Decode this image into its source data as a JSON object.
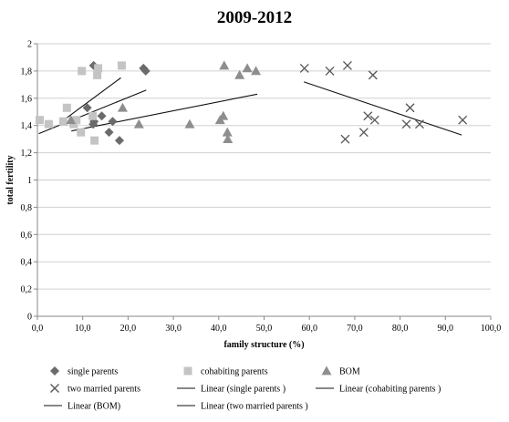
{
  "chart_data": {
    "type": "scatter",
    "title": "2009-2012",
    "xlabel": "family structure (%)",
    "ylabel": "total fertility",
    "xlim": [
      0,
      100
    ],
    "ylim": [
      0,
      2
    ],
    "x_ticks": [
      "0,0",
      "10,0",
      "20,0",
      "30,0",
      "40,0",
      "50,0",
      "60,0",
      "70,0",
      "80,0",
      "90,0",
      "100,0"
    ],
    "y_ticks": [
      "0",
      "0,2",
      "0,4",
      "0,6",
      "0,8",
      "1",
      "1,2",
      "1,4",
      "1,6",
      "1,8",
      "2"
    ],
    "grid": "horizontal",
    "legend_position": "bottom",
    "series": [
      {
        "name": "single parents",
        "marker": "diamond",
        "color": "#6b6b6b",
        "points": [
          [
            12.4,
            1.84
          ],
          [
            12.5,
            1.43
          ],
          [
            11.0,
            1.53
          ],
          [
            12.3,
            1.41
          ],
          [
            14.2,
            1.47
          ],
          [
            15.8,
            1.35
          ],
          [
            16.6,
            1.43
          ],
          [
            18.1,
            1.29
          ],
          [
            23.4,
            1.82
          ],
          [
            23.9,
            1.8
          ]
        ]
      },
      {
        "name": "cohabiting parents",
        "marker": "square",
        "color": "#c4c4c4",
        "points": [
          [
            0.5,
            1.44
          ],
          [
            2.5,
            1.41
          ],
          [
            5.7,
            1.43
          ],
          [
            6.5,
            1.53
          ],
          [
            8.0,
            1.41
          ],
          [
            8.6,
            1.44
          ],
          [
            9.6,
            1.35
          ],
          [
            9.8,
            1.8
          ],
          [
            12.2,
            1.47
          ],
          [
            12.6,
            1.29
          ],
          [
            13.2,
            1.77
          ],
          [
            13.4,
            1.82
          ],
          [
            18.6,
            1.84
          ]
        ]
      },
      {
        "name": "BOM",
        "marker": "triangle",
        "color": "#8e8e8e",
        "points": [
          [
            7.4,
            1.44
          ],
          [
            18.8,
            1.53
          ],
          [
            22.4,
            1.41
          ],
          [
            33.6,
            1.41
          ],
          [
            40.3,
            1.44
          ],
          [
            41.0,
            1.47
          ],
          [
            41.2,
            1.84
          ],
          [
            41.9,
            1.35
          ],
          [
            42.0,
            1.3
          ],
          [
            44.6,
            1.77
          ],
          [
            46.3,
            1.82
          ],
          [
            48.2,
            1.8
          ]
        ]
      },
      {
        "name": "two married parents",
        "marker": "x",
        "color": "#555555",
        "points": [
          [
            58.9,
            1.82
          ],
          [
            64.5,
            1.8
          ],
          [
            67.9,
            1.3
          ],
          [
            68.4,
            1.84
          ],
          [
            72.0,
            1.35
          ],
          [
            72.9,
            1.47
          ],
          [
            74.0,
            1.77
          ],
          [
            74.4,
            1.44
          ],
          [
            81.4,
            1.41
          ],
          [
            82.2,
            1.53
          ],
          [
            84.3,
            1.41
          ],
          [
            93.8,
            1.44
          ]
        ]
      }
    ],
    "trendlines": [
      {
        "name": "Linear (single parents )",
        "from": [
          5.0,
          1.42
        ],
        "to": [
          18.4,
          1.75
        ]
      },
      {
        "name": "Linear (cohabiting parents )",
        "from": [
          0.3,
          1.34
        ],
        "to": [
          24.0,
          1.66
        ]
      },
      {
        "name": "Linear (BOM)",
        "from": [
          7.5,
          1.36
        ],
        "to": [
          48.5,
          1.63
        ]
      },
      {
        "name": "Linear (two married parents )",
        "from": [
          58.8,
          1.72
        ],
        "to": [
          93.6,
          1.33
        ]
      }
    ]
  }
}
